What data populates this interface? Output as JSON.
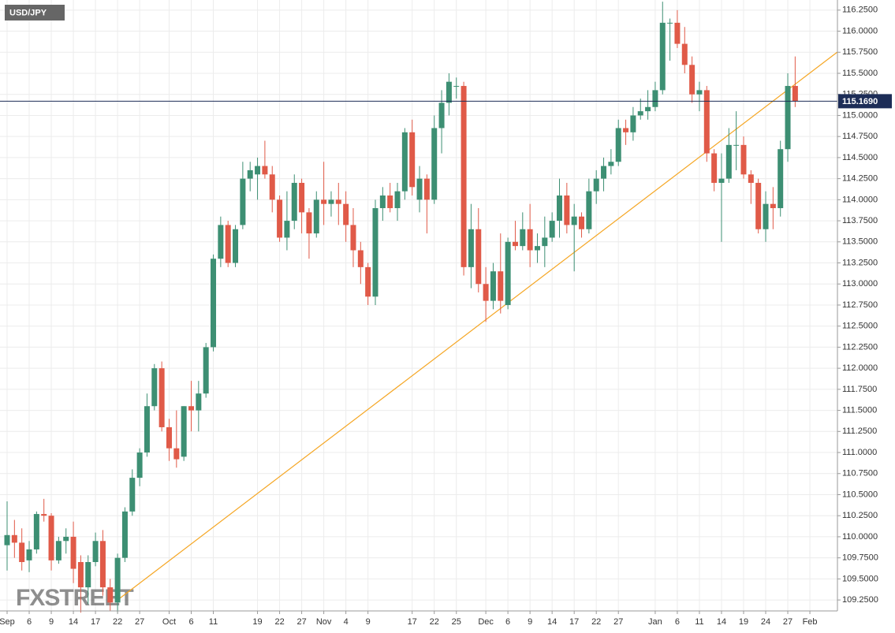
{
  "chart_data": {
    "type": "candlestick",
    "title": "USD/JPY",
    "watermark": "FXSTREET",
    "categories": [
      "Sep",
      null,
      null,
      "6",
      null,
      null,
      "9",
      null,
      null,
      "14",
      null,
      null,
      "17",
      null,
      null,
      "22",
      null,
      null,
      "27",
      null,
      null,
      null,
      "Oct",
      null,
      null,
      "6",
      null,
      null,
      "11",
      null,
      null,
      null,
      null,
      null,
      "19",
      null,
      null,
      "22",
      null,
      null,
      "27",
      null,
      null,
      "Nov",
      null,
      null,
      "4",
      null,
      null,
      "9",
      null,
      null,
      null,
      null,
      null,
      "17",
      null,
      null,
      "22",
      null,
      null,
      "25",
      null,
      null,
      null,
      "Dec",
      null,
      null,
      "6",
      null,
      null,
      "9",
      null,
      null,
      "14",
      null,
      null,
      "17",
      null,
      null,
      "22",
      null,
      null,
      "27",
      null,
      null,
      null,
      null,
      "Jan",
      null,
      null,
      "6",
      null,
      null,
      "11",
      null,
      null,
      "14",
      null,
      null,
      "19",
      null,
      null,
      "24",
      null,
      null,
      "27",
      null,
      null,
      "Feb"
    ],
    "open": [
      109.9,
      110.02,
      109.93,
      109.72,
      109.85,
      110.27,
      110.25,
      109.72,
      109.95,
      110.0,
      109.7,
      109.4,
      109.7,
      109.95,
      109.4,
      109.22,
      109.75,
      110.3,
      110.7,
      111.0,
      111.55,
      112.0,
      111.3,
      111.05,
      110.95,
      111.55,
      111.5,
      111.7,
      112.25,
      113.3,
      113.7,
      113.25,
      113.7,
      114.25,
      114.3,
      114.4,
      114.3,
      114.0,
      113.55,
      113.75,
      114.2,
      113.85,
      113.6,
      114.0,
      113.95,
      114.0,
      113.95,
      113.7,
      113.4,
      113.2,
      112.85,
      113.9,
      114.05,
      113.9,
      114.1,
      114.8,
      114.0,
      114.25,
      114.0,
      114.85,
      115.15,
      115.35,
      115.35,
      113.2,
      113.65,
      113.0,
      112.8,
      113.15,
      112.75,
      113.5,
      113.45,
      113.65,
      113.4,
      113.45,
      113.55,
      113.75,
      114.05,
      113.7,
      113.8,
      113.65,
      114.1,
      114.25,
      114.4,
      114.45,
      114.85,
      114.8,
      115.0,
      115.05,
      115.1,
      115.3,
      116.1,
      116.1,
      115.85,
      115.6,
      115.25,
      115.3,
      114.55,
      114.2,
      114.25,
      114.65,
      114.65,
      114.3,
      114.2,
      113.65,
      113.95,
      113.9,
      114.6,
      115.35,
      null,
      null
    ],
    "high": [
      110.42,
      110.2,
      110.1,
      109.95,
      110.3,
      110.45,
      110.28,
      110.0,
      110.1,
      110.18,
      109.78,
      109.78,
      110.05,
      110.08,
      109.5,
      109.8,
      110.35,
      110.8,
      111.05,
      111.7,
      112.05,
      112.08,
      111.4,
      111.5,
      111.55,
      111.85,
      111.85,
      112.3,
      113.35,
      113.8,
      113.75,
      113.7,
      114.45,
      114.45,
      114.5,
      114.7,
      114.4,
      114.05,
      114.1,
      114.3,
      114.25,
      113.9,
      114.1,
      114.45,
      114.1,
      114.2,
      114.1,
      113.9,
      113.5,
      113.25,
      114.0,
      114.15,
      114.2,
      114.2,
      114.85,
      114.95,
      114.4,
      114.3,
      115.0,
      115.3,
      115.5,
      115.45,
      115.4,
      113.95,
      113.9,
      113.2,
      113.25,
      113.6,
      113.55,
      113.75,
      113.85,
      113.95,
      113.6,
      113.8,
      113.85,
      114.25,
      114.2,
      113.95,
      113.85,
      114.25,
      114.35,
      114.5,
      114.6,
      114.95,
      114.95,
      115.1,
      115.2,
      115.3,
      115.4,
      116.35,
      116.15,
      116.25,
      116.05,
      115.7,
      115.4,
      115.35,
      114.6,
      114.55,
      114.85,
      115.05,
      114.75,
      114.35,
      114.25,
      114.1,
      114.15,
      114.7,
      115.5,
      115.7,
      null,
      null
    ],
    "low": [
      109.6,
      109.75,
      109.6,
      109.58,
      109.8,
      110.18,
      109.6,
      109.68,
      109.8,
      109.45,
      109.1,
      109.2,
      109.65,
      109.3,
      109.12,
      109.1,
      109.7,
      110.25,
      110.6,
      110.95,
      111.5,
      111.25,
      110.9,
      110.82,
      110.9,
      111.25,
      111.25,
      111.65,
      112.2,
      113.2,
      113.2,
      113.2,
      113.65,
      114.1,
      114.0,
      114.25,
      113.85,
      113.5,
      113.4,
      113.65,
      113.6,
      113.3,
      113.55,
      113.7,
      113.8,
      113.7,
      113.5,
      113.2,
      113.0,
      112.75,
      112.75,
      113.75,
      113.85,
      113.75,
      114.0,
      114.05,
      113.85,
      113.6,
      113.95,
      114.55,
      115.0,
      115.2,
      113.1,
      112.95,
      112.9,
      112.55,
      112.7,
      112.65,
      112.7,
      113.4,
      113.4,
      113.2,
      113.25,
      113.2,
      113.5,
      113.55,
      113.6,
      113.15,
      113.55,
      113.6,
      113.95,
      114.1,
      114.3,
      114.4,
      114.65,
      114.7,
      114.95,
      114.95,
      115.05,
      115.25,
      115.65,
      115.8,
      115.5,
      115.15,
      115.05,
      114.45,
      114.1,
      113.5,
      114.2,
      114.35,
      114.25,
      113.95,
      113.6,
      113.5,
      113.65,
      113.8,
      114.45,
      115.1,
      null,
      null
    ],
    "close": [
      110.02,
      109.93,
      109.7,
      109.85,
      110.27,
      110.25,
      109.72,
      109.95,
      110.0,
      109.62,
      109.4,
      109.7,
      109.95,
      109.4,
      109.22,
      109.75,
      110.3,
      110.7,
      111.0,
      111.55,
      112.0,
      111.3,
      111.05,
      110.92,
      111.55,
      111.5,
      111.7,
      112.25,
      113.3,
      113.7,
      113.25,
      113.65,
      114.25,
      114.35,
      114.4,
      114.3,
      114.0,
      113.55,
      113.75,
      114.2,
      113.85,
      113.6,
      114.0,
      113.95,
      114.0,
      113.95,
      113.7,
      113.4,
      113.2,
      112.85,
      113.9,
      114.05,
      113.9,
      114.1,
      114.8,
      114.15,
      114.25,
      114.0,
      114.85,
      115.15,
      115.4,
      115.35,
      113.2,
      113.65,
      113.0,
      112.8,
      113.15,
      112.8,
      113.5,
      113.45,
      113.65,
      113.4,
      113.45,
      113.55,
      113.75,
      114.05,
      113.7,
      113.8,
      113.65,
      114.1,
      114.25,
      114.4,
      114.45,
      114.85,
      114.8,
      115.0,
      115.05,
      115.1,
      115.3,
      116.1,
      116.1,
      115.85,
      115.6,
      115.25,
      115.3,
      114.55,
      114.2,
      114.25,
      114.65,
      114.65,
      114.3,
      114.2,
      113.65,
      113.95,
      113.9,
      114.6,
      115.35,
      115.17,
      null,
      null
    ],
    "up_color": "#3d8f73",
    "down_color": "#e05a48",
    "current_price": {
      "value": 115.169,
      "label": "115.1690",
      "color": "#1d2d57"
    },
    "trendline": {
      "x": [
        15,
        112.7
      ],
      "y": [
        109.25,
        115.75
      ],
      "color": "#f5a623"
    },
    "ylim": [
      109.12,
      116.37
    ],
    "yticks": [
      {
        "value": 109.25,
        "label": "109.2500"
      },
      {
        "value": 109.5,
        "label": "109.5000"
      },
      {
        "value": 109.75,
        "label": "109.7500"
      },
      {
        "value": 110,
        "label": "110.0000"
      },
      {
        "value": 110.25,
        "label": "110.2500"
      },
      {
        "value": 110.5,
        "label": "110.5000"
      },
      {
        "value": 110.75,
        "label": "110.7500"
      },
      {
        "value": 111,
        "label": "111.0000"
      },
      {
        "value": 111.25,
        "label": "111.2500"
      },
      {
        "value": 111.5,
        "label": "111.5000"
      },
      {
        "value": 111.75,
        "label": "111.7500"
      },
      {
        "value": 112,
        "label": "112.0000"
      },
      {
        "value": 112.25,
        "label": "112.2500"
      },
      {
        "value": 112.5,
        "label": "112.5000"
      },
      {
        "value": 112.75,
        "label": "112.7500"
      },
      {
        "value": 113,
        "label": "113.0000"
      },
      {
        "value": 113.25,
        "label": "113.2500"
      },
      {
        "value": 113.5,
        "label": "113.5000"
      },
      {
        "value": 113.75,
        "label": "113.7500"
      },
      {
        "value": 114,
        "label": "114.0000"
      },
      {
        "value": 114.25,
        "label": "114.2500"
      },
      {
        "value": 114.5,
        "label": "114.5000"
      },
      {
        "value": 114.75,
        "label": "114.7500"
      },
      {
        "value": 115,
        "label": "115.0000"
      },
      {
        "value": 115.25,
        "label": "115.2500"
      },
      {
        "value": 115.5,
        "label": "115.5000"
      },
      {
        "value": 115.75,
        "label": "115.7500"
      },
      {
        "value": 116,
        "label": "116.0000"
      },
      {
        "value": 116.25,
        "label": "116.2500"
      }
    ],
    "grid": true
  }
}
